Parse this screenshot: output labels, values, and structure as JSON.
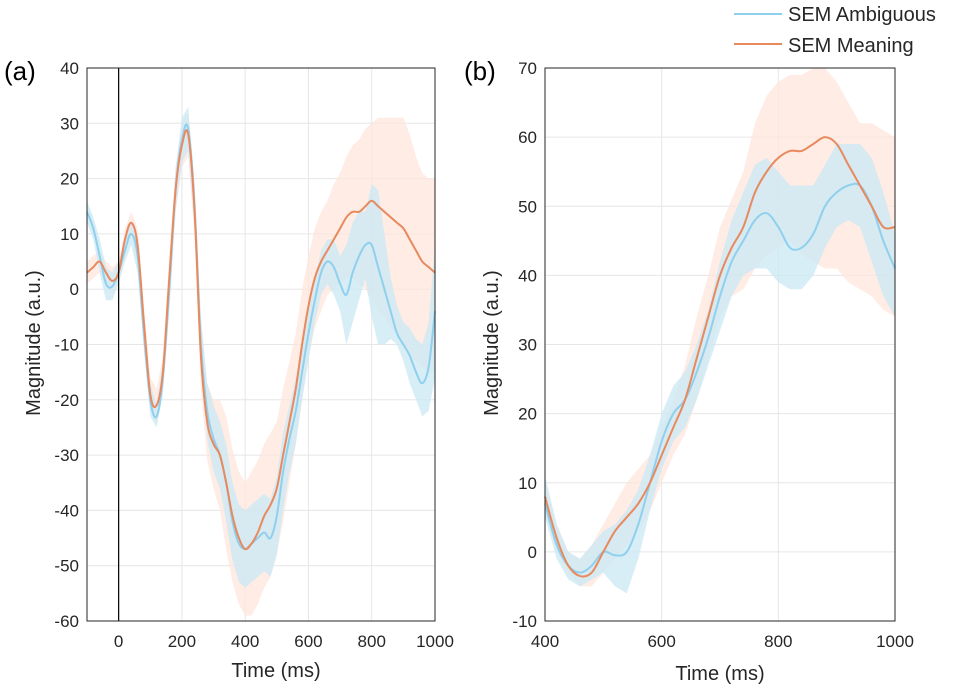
{
  "legend": {
    "entries": [
      {
        "label": "SEM Ambiguous",
        "color": "#8fd0ee",
        "band_color": "#c9e8f4"
      },
      {
        "label": "SEM Meaning",
        "color": "#e8895e",
        "band_color": "#fde6dc"
      }
    ],
    "placement": "top-right"
  },
  "chart_data": [
    {
      "type": "line",
      "panel_label": "(a)",
      "xlabel": "Time (ms)",
      "ylabel": "Magnitude (a.u.)",
      "xlim": [
        -100,
        1000
      ],
      "ylim": [
        -60,
        40
      ],
      "xticks": [
        0,
        200,
        400,
        600,
        800,
        1000
      ],
      "yticks": [
        -60,
        -50,
        -40,
        -30,
        -20,
        -10,
        0,
        10,
        20,
        30,
        40
      ],
      "grid": true,
      "vline_x": 0,
      "series": [
        {
          "name": "SEM Ambiguous",
          "x": [
            -100,
            -80,
            -60,
            -40,
            -20,
            0,
            20,
            40,
            60,
            80,
            100,
            120,
            140,
            160,
            180,
            200,
            220,
            240,
            260,
            280,
            300,
            320,
            340,
            360,
            380,
            400,
            420,
            440,
            460,
            480,
            500,
            520,
            540,
            560,
            580,
            600,
            620,
            640,
            660,
            680,
            700,
            720,
            740,
            760,
            780,
            800,
            820,
            840,
            860,
            880,
            900,
            920,
            940,
            960,
            980,
            1000
          ],
          "values": [
            14,
            11,
            6,
            1,
            0.5,
            3,
            7,
            10,
            6,
            -8,
            -20,
            -23,
            -16,
            0,
            18,
            27,
            29,
            15,
            -10,
            -22,
            -27,
            -30,
            -35,
            -42,
            -46,
            -47,
            -46,
            -45,
            -44,
            -45,
            -41,
            -33,
            -27,
            -22,
            -15,
            -8,
            -2,
            3,
            5,
            4,
            1,
            -1,
            3,
            6,
            8,
            8,
            4,
            0,
            -4,
            -8,
            -10,
            -12,
            -15,
            -17,
            -14,
            -4
          ],
          "lower": [
            12,
            9,
            3,
            -2,
            -2,
            1,
            5,
            8,
            3,
            -11,
            -23,
            -25,
            -19,
            -4,
            14,
            23,
            25,
            11,
            -15,
            -27,
            -33,
            -36,
            -42,
            -49,
            -53,
            -54,
            -53,
            -52,
            -51,
            -52,
            -48,
            -40,
            -33,
            -28,
            -20,
            -13,
            -6,
            -1,
            1,
            -1,
            -4,
            -10,
            -6,
            -2,
            2,
            -5,
            -10,
            -10,
            -9,
            -10,
            -13,
            -17,
            -20,
            -23,
            -22,
            -16
          ],
          "upper": [
            16,
            13,
            9,
            4,
            3,
            5,
            9,
            12,
            9,
            -5,
            -17,
            -21,
            -13,
            4,
            22,
            31,
            33,
            19,
            -5,
            -17,
            -21,
            -24,
            -28,
            -35,
            -39,
            -40,
            -39,
            -38,
            -37,
            -38,
            -34,
            -26,
            -21,
            -16,
            -10,
            -3,
            2,
            7,
            9,
            9,
            6,
            8,
            12,
            14,
            14,
            19,
            18,
            10,
            2,
            -3,
            -6,
            -7,
            -9,
            -10,
            -6,
            8
          ]
        },
        {
          "name": "SEM Meaning",
          "x": [
            -100,
            -80,
            -60,
            -40,
            -20,
            0,
            20,
            40,
            60,
            80,
            100,
            120,
            140,
            160,
            180,
            200,
            220,
            240,
            260,
            280,
            300,
            320,
            340,
            360,
            380,
            400,
            420,
            440,
            460,
            480,
            500,
            520,
            540,
            560,
            580,
            600,
            620,
            640,
            660,
            680,
            700,
            720,
            740,
            760,
            780,
            800,
            820,
            840,
            860,
            880,
            900,
            920,
            940,
            960,
            980,
            1000
          ],
          "values": [
            3,
            4,
            5,
            3,
            1.5,
            3,
            9,
            12,
            8,
            -6,
            -19,
            -21,
            -15,
            2,
            18,
            26,
            28,
            14,
            -12,
            -24,
            -28,
            -30,
            -35,
            -41,
            -45,
            -47,
            -46,
            -44,
            -41,
            -39,
            -36,
            -30,
            -24,
            -18,
            -10,
            -3,
            2,
            5,
            7,
            9,
            11,
            13,
            14,
            14,
            15,
            16,
            15,
            14,
            13,
            12,
            11,
            9,
            7,
            5,
            4,
            3
          ],
          "lower": [
            1,
            2,
            3,
            1,
            -1,
            1,
            7,
            10,
            5,
            -9,
            -22,
            -24,
            -18,
            -2,
            14,
            22,
            24,
            9,
            -18,
            -31,
            -36,
            -40,
            -47,
            -53,
            -57,
            -59,
            -59,
            -57,
            -54,
            -52,
            -48,
            -42,
            -35,
            -28,
            -20,
            -12,
            -7,
            -4,
            -1,
            0,
            1,
            2,
            2,
            1,
            0,
            -2,
            -4,
            -5,
            -7,
            -8,
            -10,
            -12,
            -13,
            -14,
            -15,
            -15
          ],
          "upper": [
            5,
            6,
            7,
            5,
            4,
            5,
            11,
            14,
            11,
            -3,
            -16,
            -18,
            -12,
            6,
            22,
            30,
            32,
            19,
            -6,
            -17,
            -20,
            -20,
            -23,
            -29,
            -33,
            -35,
            -33,
            -31,
            -28,
            -26,
            -24,
            -18,
            -13,
            -8,
            0,
            6,
            11,
            14,
            16,
            19,
            21,
            24,
            26,
            27,
            29,
            30,
            31,
            31,
            31,
            31,
            31,
            28,
            24,
            21,
            20,
            20
          ]
        }
      ]
    },
    {
      "type": "line",
      "panel_label": "(b)",
      "xlabel": "Time (ms)",
      "ylabel": "Magnitude (a.u.)",
      "xlim": [
        400,
        1000
      ],
      "ylim": [
        -10,
        70
      ],
      "xticks": [
        400,
        600,
        800,
        1000
      ],
      "yticks": [
        -10,
        0,
        10,
        20,
        30,
        40,
        50,
        60,
        70
      ],
      "grid": true,
      "series": [
        {
          "name": "SEM Ambiguous",
          "x": [
            400,
            420,
            440,
            460,
            480,
            500,
            520,
            540,
            560,
            580,
            600,
            620,
            640,
            660,
            680,
            700,
            720,
            740,
            760,
            780,
            800,
            820,
            840,
            860,
            880,
            900,
            920,
            940,
            960,
            980,
            1000
          ],
          "values": [
            7,
            1,
            -2,
            -3,
            -2,
            0,
            -0.5,
            0,
            4,
            10,
            16,
            20,
            22,
            26,
            31,
            37,
            42,
            45,
            48,
            49,
            47,
            44,
            44,
            46,
            50,
            52,
            53,
            53,
            50,
            45,
            41
          ],
          "lower": [
            5,
            -1,
            -4,
            -5,
            -4,
            -3,
            -5,
            -6,
            -1,
            6,
            12,
            16,
            18,
            22,
            27,
            32,
            37,
            40,
            41,
            41,
            39,
            38,
            38,
            40,
            44,
            47,
            48,
            47,
            42,
            37,
            34
          ],
          "upper": [
            11,
            4,
            0,
            -1,
            1,
            3,
            4,
            6,
            9,
            14,
            20,
            24,
            26,
            30,
            35,
            42,
            48,
            52,
            56,
            57,
            55,
            53,
            53,
            53,
            56,
            59,
            59,
            59,
            57,
            52,
            46
          ]
        },
        {
          "name": "SEM Meaning",
          "x": [
            400,
            420,
            440,
            460,
            480,
            500,
            520,
            540,
            560,
            580,
            600,
            620,
            640,
            660,
            680,
            700,
            720,
            740,
            760,
            780,
            800,
            820,
            840,
            860,
            880,
            900,
            920,
            940,
            960,
            980,
            1000
          ],
          "values": [
            8,
            2,
            -2,
            -3.5,
            -3,
            0,
            3,
            5,
            7,
            10,
            14,
            18,
            22,
            28,
            34,
            40,
            44,
            47,
            52,
            55,
            57,
            58,
            58,
            59,
            60,
            59,
            56,
            53,
            50,
            47,
            47
          ],
          "lower": [
            6,
            0,
            -3,
            -5,
            -5,
            -3,
            -1,
            1,
            3,
            6,
            10,
            14,
            17,
            22,
            28,
            34,
            37,
            38,
            41,
            43,
            44,
            45,
            43,
            42,
            41,
            41,
            39,
            38,
            37,
            35,
            34
          ],
          "upper": [
            10,
            4,
            0,
            -1,
            1,
            4,
            7,
            10,
            12,
            14,
            18,
            22,
            27,
            34,
            40,
            47,
            51,
            55,
            62,
            66,
            68,
            69,
            69,
            70,
            70,
            68,
            65,
            62,
            62,
            61,
            60
          ]
        }
      ]
    }
  ]
}
